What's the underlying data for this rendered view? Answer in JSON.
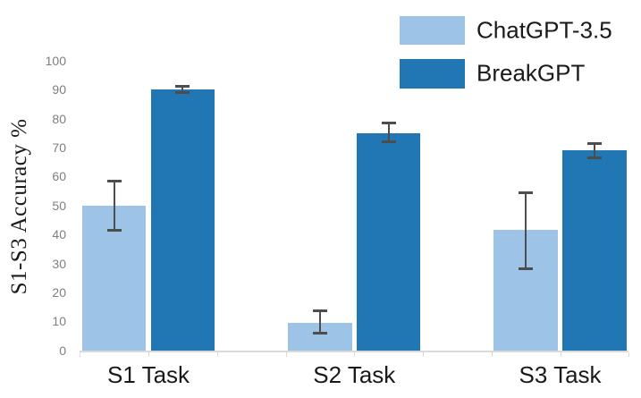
{
  "chart_data": {
    "type": "bar",
    "title": "",
    "categories": [
      "S1 Task",
      "S2 Task",
      "S3 Task"
    ],
    "series": [
      {
        "name": "ChatGPT-3.5",
        "color": "#9DC3E6",
        "values": [
          50,
          9.5,
          41.5
        ],
        "error_low": [
          41.5,
          6,
          28
        ],
        "error_high": [
          58.5,
          13.5,
          54.5
        ]
      },
      {
        "name": "BreakGPT",
        "color": "#2176B4",
        "values": [
          90,
          75,
          69
        ],
        "error_low": [
          89,
          72,
          66.5
        ],
        "error_high": [
          91,
          78.5,
          71.5
        ]
      }
    ],
    "xlabel": "",
    "ylabel": "S1-S3 Accuracy %",
    "ylim": [
      0,
      100
    ],
    "ytick_step": 10,
    "yticks": [
      0,
      10,
      20,
      30,
      40,
      50,
      60,
      70,
      80,
      90,
      100
    ],
    "grid": false,
    "legend_position": "top-right",
    "error_bars": true
  },
  "colors": {
    "background": "#FFFFFF",
    "axis_line": "#D9D9D9",
    "tick_label": "#7F7F7F",
    "error_bar": "#4D4D4D",
    "text": "#1A1A1A",
    "series_light": "#9DC3E6",
    "series_dark": "#2176B4"
  }
}
